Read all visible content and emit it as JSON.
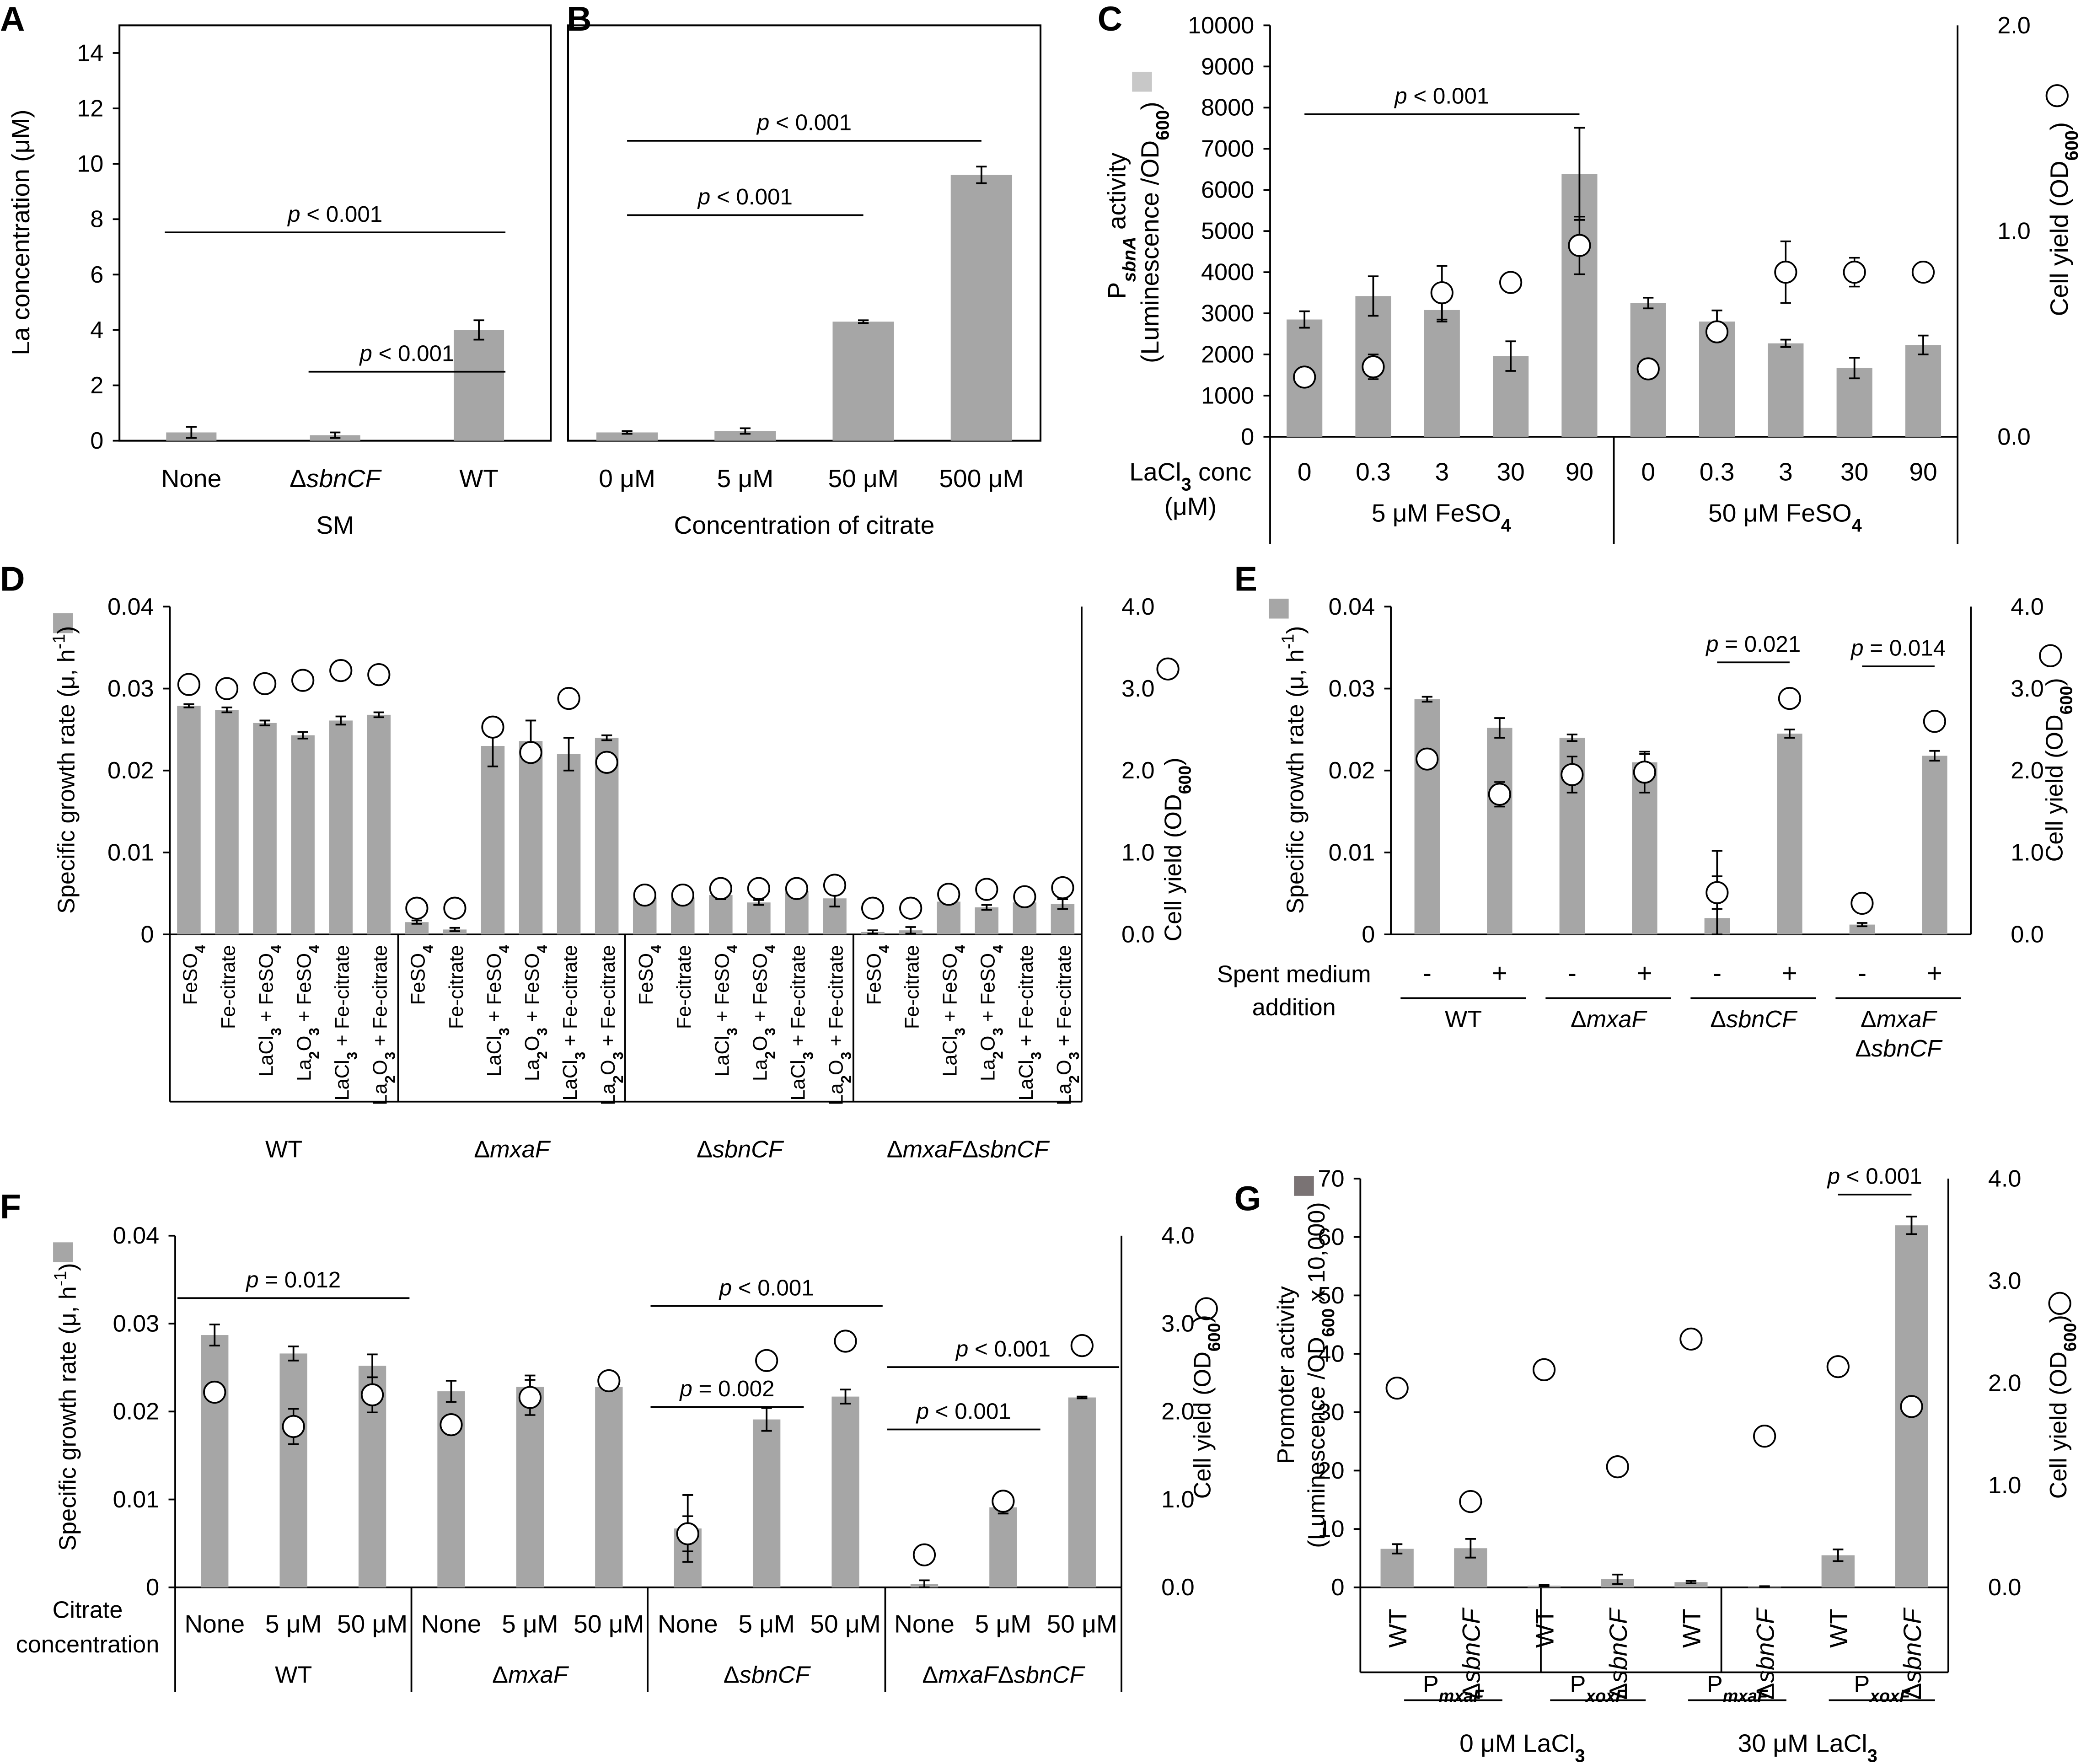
{
  "figure": {
    "bar_color": "#a6a6a6",
    "bar_color_dark": "#7a7374",
    "circle_fill": "#ffffff",
    "ink": "#000000"
  },
  "chart_data": [
    {
      "panel": "A",
      "type": "bar",
      "ylabel": "La concentration  (μM)",
      "ylim": [
        0,
        15
      ],
      "yticks": [
        0,
        2,
        4,
        6,
        8,
        10,
        12,
        14
      ],
      "categories": [
        "None",
        "ΔsbnCF",
        "WT"
      ],
      "values": [
        0.3,
        0.2,
        4.0
      ],
      "errors": [
        0.2,
        0.1,
        0.35
      ],
      "group_label": "SM",
      "annotations": [
        {
          "text": "p < 0.001",
          "from": "None",
          "to": "WT"
        },
        {
          "text": "p < 0.001",
          "from": "ΔsbnCF",
          "to": "WT"
        }
      ]
    },
    {
      "panel": "B",
      "type": "bar",
      "ylim": [
        0,
        15
      ],
      "categories": [
        "0 μM",
        "5 μM",
        "50 μM",
        "500 μM"
      ],
      "values": [
        0.3,
        0.35,
        4.3,
        9.6
      ],
      "errors": [
        0.05,
        0.1,
        0.05,
        0.3
      ],
      "xlabel": "Concentration of citrate",
      "annotations": [
        {
          "text": "p < 0.001",
          "from": "0 μM",
          "to": "500 μM"
        },
        {
          "text": "p < 0.001",
          "from": "0 μM",
          "to": "50 μM"
        }
      ]
    },
    {
      "panel": "C",
      "type": "bar+scatter",
      "ylabel_lines": [
        "P sbnA activity",
        "(Luminescence /OD600)"
      ],
      "y2label": "Cell yield (OD600)",
      "ylim": [
        0,
        10000
      ],
      "yticks": [
        0,
        1000,
        2000,
        3000,
        4000,
        5000,
        6000,
        7000,
        8000,
        9000,
        10000
      ],
      "y2lim": [
        0,
        2.0
      ],
      "y2ticks": [
        "0.0",
        "1.0",
        "2.0"
      ],
      "x_title": "LaCl3 conc",
      "x_title_unit": "(μM)",
      "categories": [
        "0",
        "0.3",
        "3",
        "30",
        "90",
        "0",
        "0.3",
        "3",
        "30",
        "90"
      ],
      "groups": [
        "5 μM FeSO4",
        "50 μM FeSO4"
      ],
      "values": [
        2850,
        3420,
        3080,
        1960,
        6390,
        3250,
        2800,
        2270,
        1670,
        2230
      ],
      "errors": [
        200,
        480,
        280,
        360,
        1120,
        130,
        270,
        90,
        250,
        230
      ],
      "cell_yield": [
        0.29,
        0.34,
        0.7,
        0.75,
        0.93,
        0.33,
        0.51,
        0.8,
        0.8,
        0.8
      ],
      "cell_yield_err": [
        0,
        0.06,
        0.13,
        0,
        0.14,
        0,
        0,
        0.15,
        0.07,
        0
      ],
      "annotations": [
        {
          "text": "p < 0.001",
          "from": 0,
          "to": 4
        }
      ]
    },
    {
      "panel": "D",
      "type": "bar+scatter",
      "ylabel": "Specific growth rate  (μ, h-1)",
      "y2label": "Cell yield (OD600)",
      "ylim": [
        0,
        0.04
      ],
      "yticks": [
        "0",
        "0.01",
        "0.02",
        "0.03",
        "0.04"
      ],
      "y2lim": [
        0,
        4.0
      ],
      "y2ticks": [
        "0.0",
        "1.0",
        "2.0",
        "3.0",
        "4.0"
      ],
      "categories": [
        "FeSO4",
        "Fe-citrate",
        "LaCl3 + FeSO4",
        "La2O3 + FeSO4",
        "LaCl3 + Fe-citrate",
        "La2O3 + Fe-citrate"
      ],
      "groups": [
        "WT",
        "ΔmxaF",
        "ΔsbnCF",
        "ΔmxaFΔsbnCF"
      ],
      "values": [
        0.0279,
        0.0274,
        0.0258,
        0.0243,
        0.0261,
        0.0268,
        0.0015,
        0.0006,
        0.023,
        0.0236,
        0.022,
        0.024,
        0.0045,
        0.0045,
        0.0048,
        0.0039,
        0.0053,
        0.0044,
        0.0003,
        0.0005,
        0.004,
        0.0033,
        0.0039,
        0.0037
      ],
      "errors": [
        0.0002,
        0.0003,
        0.0003,
        0.0004,
        0.0005,
        0.0003,
        0.0002,
        0.0002,
        0.0025,
        0.0025,
        0.002,
        0.0003,
        0.0003,
        0.0003,
        0.0005,
        0.0003,
        0.0003,
        0.001,
        0.0002,
        0.0004,
        0.0003,
        0.0003,
        0.0003,
        0.0006
      ],
      "cell_yield": [
        3.05,
        3.0,
        3.06,
        3.1,
        3.22,
        3.17,
        0.32,
        0.32,
        2.53,
        2.22,
        2.88,
        2.1,
        0.48,
        0.48,
        0.56,
        0.56,
        0.56,
        0.6,
        0.32,
        0.32,
        0.49,
        0.55,
        0.46,
        0.57
      ],
      "cell_yield_err": [
        0,
        0,
        0,
        0,
        0.12,
        0,
        0,
        0,
        0,
        0,
        0,
        0,
        0,
        0,
        0,
        0,
        0,
        0,
        0,
        0,
        0,
        0,
        0,
        0
      ]
    },
    {
      "panel": "E",
      "type": "bar+scatter",
      "ylabel": "Specific growth rate  (μ, h-1)",
      "y2label": "Cell yield (OD600)",
      "ylim": [
        0,
        0.04
      ],
      "yticks": [
        "0",
        "0.01",
        "0.02",
        "0.03",
        "0.04"
      ],
      "y2lim": [
        0,
        4.0
      ],
      "y2ticks": [
        "0.0",
        "1.0",
        "2.0",
        "3.0",
        "4.0"
      ],
      "x_title_lines": [
        "Spent medium",
        "addition"
      ],
      "categories": [
        "-",
        "+",
        "-",
        "+",
        "-",
        "+",
        "-",
        "+"
      ],
      "groups": [
        "WT",
        "ΔmxaF",
        "ΔsbnCF",
        "ΔmxaF\nΔsbnCF"
      ],
      "values": [
        0.0287,
        0.0252,
        0.024,
        0.021,
        0.002,
        0.0245,
        0.0012,
        0.0218
      ],
      "errors": [
        0.0003,
        0.0012,
        0.0004,
        0.001,
        0.0082,
        0.0005,
        0.0002,
        0.0006
      ],
      "cell_yield": [
        2.14,
        1.71,
        1.95,
        1.98,
        0.51,
        2.88,
        0.38,
        2.6
      ],
      "cell_yield_err": [
        0,
        0.15,
        0.22,
        0.25,
        0.2,
        0,
        0,
        0
      ],
      "annotations": [
        {
          "text": "p = 0.021",
          "from": 4,
          "to": 5
        },
        {
          "text": "p = 0.014",
          "from": 6,
          "to": 7
        }
      ]
    },
    {
      "panel": "F",
      "type": "bar+scatter",
      "ylabel": "Specific growth rate  (μ, h-1)",
      "y2label": "Cell yield (OD600)",
      "ylim": [
        0,
        0.04
      ],
      "yticks": [
        "0",
        "0.01",
        "0.02",
        "0.03",
        "0.04"
      ],
      "y2lim": [
        0,
        4.0
      ],
      "y2ticks": [
        "0.0",
        "1.0",
        "2.0",
        "3.0",
        "4.0"
      ],
      "x_title_lines": [
        "Citrate",
        "concentration"
      ],
      "categories": [
        "None",
        "5 μM",
        "50 μM",
        "None",
        "5 μM",
        "50 μM",
        "None",
        "5 μM",
        "50 μM",
        "None",
        "5 μM",
        "50 μM"
      ],
      "groups": [
        "WT",
        "ΔmxaF",
        "ΔsbnCF",
        "ΔmxaFΔsbnCF"
      ],
      "values": [
        0.0287,
        0.0266,
        0.0252,
        0.0223,
        0.0228,
        0.0228,
        0.0067,
        0.0191,
        0.0217,
        0.0004,
        0.0091,
        0.0216
      ],
      "errors": [
        0.0012,
        0.0008,
        0.0013,
        0.0012,
        0.0013,
        0,
        0.0038,
        0.0013,
        0.0008,
        0.0004,
        0.0007,
        0.0001
      ],
      "cell_yield": [
        2.22,
        1.83,
        2.19,
        1.85,
        2.16,
        2.35,
        0.61,
        2.58,
        2.8,
        0.37,
        0.98,
        2.75
      ],
      "cell_yield_err": [
        0,
        0.2,
        0.2,
        0.1,
        0.2,
        0,
        0.2,
        0,
        0,
        0,
        0.1,
        0
      ],
      "annotations": [
        {
          "text": "p = 0.012",
          "from": 0,
          "to": 2
        },
        {
          "text": "p < 0.001",
          "from": 6,
          "to": 8
        },
        {
          "text": "p = 0.002",
          "from": 6,
          "to": 7
        },
        {
          "text": "p < 0.001",
          "from": 9,
          "to": 11
        },
        {
          "text": "p < 0.001",
          "from": 9,
          "to": 10
        }
      ]
    },
    {
      "panel": "G",
      "type": "bar+scatter",
      "ylabel_lines": [
        "Promoter activity",
        "(Luminescence /OD600 x 10,000)"
      ],
      "y2label": "Cell yield (OD600)",
      "ylim": [
        0,
        70
      ],
      "yticks": [
        0,
        10,
        20,
        30,
        40,
        50,
        60,
        70
      ],
      "y2lim": [
        0,
        4.0
      ],
      "y2ticks": [
        "0.0",
        "1.0",
        "2.0",
        "3.0",
        "4.0"
      ],
      "categories": [
        "WT",
        "ΔsbnCF",
        "WT",
        "ΔsbnCF",
        "WT",
        "ΔsbnCF",
        "WT",
        "ΔsbnCF"
      ],
      "promoters": [
        "PmxaF",
        "PxoxF",
        "PmxaF",
        "PxoxF"
      ],
      "conditions": [
        "0 μM LaCl3",
        "30 μM LaCl3"
      ],
      "values": [
        6.6,
        6.7,
        0.3,
        1.4,
        0.9,
        0.1,
        5.5,
        62.0
      ],
      "errors": [
        0.8,
        1.6,
        0.1,
        0.8,
        0.2,
        0.1,
        1.0,
        1.5
      ],
      "cell_yield": [
        1.95,
        0.84,
        2.13,
        1.18,
        2.43,
        1.48,
        2.16,
        1.77
      ],
      "cell_yield_err": [
        0,
        0,
        0,
        0,
        0,
        0,
        0,
        0
      ],
      "annotations": [
        {
          "text": "p < 0.001",
          "from": 6,
          "to": 7
        }
      ]
    }
  ]
}
